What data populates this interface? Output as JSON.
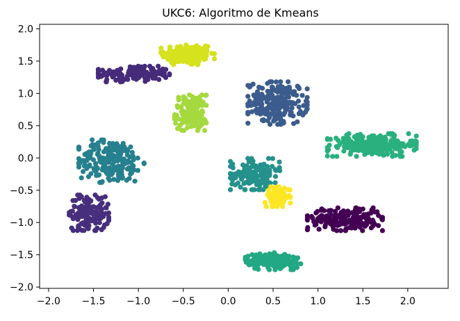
{
  "chart_data": {
    "type": "scatter",
    "title": "UKC6: Algoritmo de Kmeans",
    "xlabel": "",
    "ylabel": "",
    "xlim": [
      -2.1,
      2.45
    ],
    "ylim": [
      -2.02,
      2.07
    ],
    "xticks": [
      -2.0,
      -1.5,
      -1.0,
      -0.5,
      0.0,
      0.5,
      1.0,
      1.5,
      2.0
    ],
    "yticks": [
      -2.0,
      -1.5,
      -1.0,
      -0.5,
      0.0,
      0.5,
      1.0,
      1.5,
      2.0
    ],
    "xtick_labels": [
      "−2.0",
      "−1.5",
      "−1.0",
      "−0.5",
      "0.0",
      "0.5",
      "1.0",
      "1.5",
      "2.0"
    ],
    "ytick_labels": [
      "−2.0",
      "−1.5",
      "−1.0",
      "−0.5",
      "0.0",
      "0.5",
      "1.0",
      "1.5",
      "2.0"
    ],
    "grid": false,
    "legend": "none",
    "clusters": [
      {
        "color": "#d5e21d",
        "center": [
          -0.45,
          1.6
        ],
        "spread": [
          0.27,
          0.16
        ],
        "count": 160
      },
      {
        "color": "#462b7a",
        "center": [
          -1.05,
          1.3
        ],
        "spread": [
          0.36,
          0.11
        ],
        "count": 150
      },
      {
        "color": "#a5d93f",
        "center": [
          -0.42,
          0.7
        ],
        "spread": [
          0.16,
          0.25
        ],
        "count": 140
      },
      {
        "color": "#3b5c8c",
        "center": [
          0.55,
          0.85
        ],
        "spread": [
          0.3,
          0.3
        ],
        "count": 220
      },
      {
        "color": "#2ab07f",
        "center": [
          1.6,
          0.2
        ],
        "spread": [
          0.45,
          0.16
        ],
        "count": 240
      },
      {
        "color": "#26808e",
        "center": [
          -1.3,
          -0.05
        ],
        "spread": [
          0.33,
          0.3
        ],
        "count": 230
      },
      {
        "color": "#25918c",
        "center": [
          0.3,
          -0.25
        ],
        "spread": [
          0.25,
          0.22
        ],
        "count": 150
      },
      {
        "color": "#fde725",
        "center": [
          0.55,
          -0.6
        ],
        "spread": [
          0.13,
          0.14
        ],
        "count": 90
      },
      {
        "color": "#440154",
        "center": [
          1.3,
          -0.95
        ],
        "spread": [
          0.38,
          0.16
        ],
        "count": 200
      },
      {
        "color": "#472f7d",
        "center": [
          -1.55,
          -0.85
        ],
        "spread": [
          0.2,
          0.25
        ],
        "count": 150
      },
      {
        "color": "#22a884",
        "center": [
          0.5,
          -1.6
        ],
        "spread": [
          0.28,
          0.12
        ],
        "count": 160
      }
    ]
  }
}
